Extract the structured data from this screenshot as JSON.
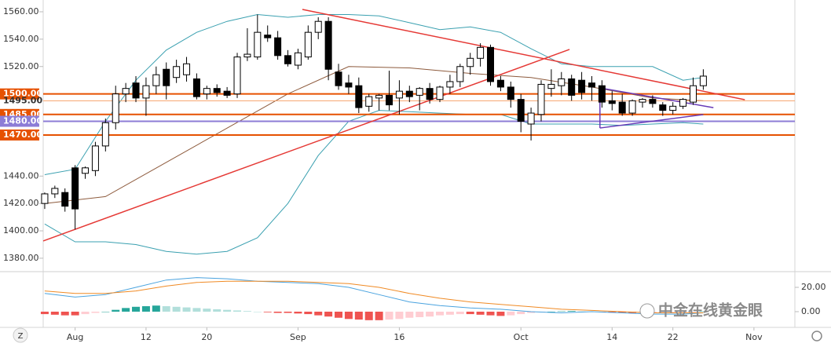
{
  "chart_data": {
    "type": "candlestick",
    "open": [
      1420,
      1427,
      1428,
      1446,
      1442,
      1444,
      1462,
      1479,
      1500,
      1508,
      1497,
      1506,
      1518,
      1512,
      1514,
      1511,
      1500,
      1504,
      1502,
      1500,
      1527,
      1527,
      1543,
      1541,
      1528,
      1521,
      1527,
      1545,
      1553,
      1516,
      1508,
      1506,
      1491,
      1497,
      1499,
      1497,
      1502,
      1499,
      1504,
      1496,
      1505,
      1509,
      1520,
      1526,
      1534,
      1510,
      1505,
      1496,
      1478,
      1485,
      1504,
      1506,
      1511,
      1510,
      1508,
      1506,
      1495,
      1494,
      1486,
      1494,
      1496,
      1492,
      1488,
      1491,
      1494,
      1506
    ],
    "high": [
      1428,
      1433,
      1431,
      1448,
      1447,
      1465,
      1482,
      1506,
      1508,
      1513,
      1512,
      1520,
      1523,
      1525,
      1527,
      1515,
      1506,
      1507,
      1505,
      1530,
      1548,
      1558,
      1550,
      1546,
      1532,
      1533,
      1550,
      1556,
      1556,
      1522,
      1514,
      1512,
      1500,
      1500,
      1517,
      1510,
      1506,
      1505,
      1508,
      1506,
      1514,
      1522,
      1530,
      1537,
      1536,
      1513,
      1509,
      1500,
      1490,
      1510,
      1518,
      1516,
      1514,
      1516,
      1513,
      1510,
      1502,
      1500,
      1496,
      1497,
      1499,
      1494,
      1494,
      1497,
      1512,
      1518
    ],
    "low": [
      1416,
      1424,
      1414,
      1401,
      1438,
      1440,
      1458,
      1474,
      1494,
      1494,
      1484,
      1500,
      1496,
      1508,
      1509,
      1496,
      1496,
      1498,
      1497,
      1497,
      1524,
      1525,
      1538,
      1525,
      1520,
      1518,
      1525,
      1540,
      1510,
      1503,
      1500,
      1486,
      1487,
      1488,
      1488,
      1485,
      1494,
      1488,
      1493,
      1494,
      1500,
      1505,
      1514,
      1520,
      1506,
      1502,
      1490,
      1472,
      1466,
      1480,
      1498,
      1499,
      1495,
      1496,
      1495,
      1490,
      1488,
      1484,
      1484,
      1490,
      1490,
      1484,
      1485,
      1489,
      1492,
      1503
    ],
    "close": [
      1427,
      1431,
      1418,
      1416,
      1446,
      1462,
      1479,
      1500,
      1504,
      1497,
      1506,
      1514,
      1506,
      1520,
      1522,
      1498,
      1504,
      1501,
      1499,
      1527,
      1529,
      1545,
      1541,
      1528,
      1522,
      1530,
      1545,
      1553,
      1518,
      1506,
      1505,
      1490,
      1498,
      1499,
      1492,
      1502,
      1498,
      1504,
      1496,
      1505,
      1509,
      1520,
      1526,
      1534,
      1509,
      1505,
      1496,
      1480,
      1486,
      1507,
      1507,
      1511,
      1499,
      1501,
      1505,
      1494,
      1493,
      1486,
      1495,
      1496,
      1493,
      1488,
      1491,
      1496,
      1506,
      1513
    ],
    "xlim": [
      -0.15,
      74.04
    ],
    "xticks": [
      {
        "value": 3,
        "label": "Aug"
      },
      {
        "value": 10,
        "label": "12"
      },
      {
        "value": 16,
        "label": "20"
      },
      {
        "value": 25,
        "label": "Sep"
      },
      {
        "value": 35,
        "label": "16"
      },
      {
        "value": 47,
        "label": "Oct"
      },
      {
        "value": 56,
        "label": "14"
      },
      {
        "value": 62,
        "label": "22"
      },
      {
        "value": 70,
        "label": "Nov"
      }
    ],
    "ylim": [
      1370.2,
      1568.6
    ],
    "yticks": [
      {
        "value": 1560,
        "label": "1560.00"
      },
      {
        "value": 1540,
        "label": "1540.00"
      },
      {
        "value": 1520,
        "label": "1520.00"
      },
      {
        "value": 1440,
        "label": "1440.00"
      },
      {
        "value": 1420,
        "label": "1420.00"
      },
      {
        "value": 1400,
        "label": "1400.00"
      },
      {
        "value": 1380,
        "label": "1380.00"
      }
    ],
    "levels": [
      {
        "value": 1500,
        "label": "1500.00",
        "color": "#e65100",
        "badge": true
      },
      {
        "value": 1495,
        "label": "1495.00",
        "color": "#f6a26b",
        "badge": false
      },
      {
        "value": 1485,
        "label": "1485.00",
        "color": "#e65100",
        "badge": true
      },
      {
        "value": 1480,
        "label": "1480.00",
        "color": "#8c7cd6",
        "badge": true
      },
      {
        "value": 1470,
        "label": "1470.00",
        "color": "#e65100",
        "badge": true
      }
    ],
    "bands": {
      "x": [
        0,
        3,
        6,
        9,
        12,
        15,
        18,
        21,
        24,
        27,
        30,
        33,
        36,
        39,
        42,
        45,
        48,
        51,
        54,
        57,
        60,
        63,
        65
      ],
      "upper": [
        1441,
        1445,
        1480,
        1510,
        1532,
        1545,
        1553,
        1558,
        1556,
        1558,
        1558,
        1557,
        1552,
        1547,
        1549,
        1545,
        1533,
        1522,
        1520,
        1520,
        1520,
        1510,
        1512
      ],
      "lower": [
        1405,
        1392,
        1392,
        1390,
        1385,
        1383,
        1385,
        1395,
        1420,
        1455,
        1480,
        1488,
        1487,
        1486,
        1485,
        1485,
        1478,
        1478,
        1478,
        1477,
        1478,
        1479,
        1478
      ],
      "basis_x": [
        0,
        6,
        12,
        18,
        24,
        30,
        36,
        42,
        48,
        54,
        60,
        65
      ],
      "basis": [
        1420,
        1425,
        1450,
        1475,
        1500,
        1520,
        1519,
        1515,
        1512,
        1505,
        1497,
        1495
      ],
      "band_color": "#3aa0b0",
      "basis_color": "#8d5a3c"
    },
    "trendlines": [
      {
        "x": [
          25.43,
          69.1
        ],
        "y": [
          1561.7,
          1495.8
        ],
        "color": "#e53935"
      },
      {
        "x": [
          -0.15,
          51.8
        ],
        "y": [
          1392.6,
          1532.5
        ],
        "color": "#e53935"
      },
      {
        "x": [
          54.8,
          66
        ],
        "y": [
          1504.4,
          1490
        ],
        "color": "#673ab7"
      },
      {
        "x": [
          54.8,
          65
        ],
        "y": [
          1475.1,
          1484.9
        ],
        "color": "#673ab7"
      },
      {
        "x": [
          54.8,
          54.8
        ],
        "y": [
          1504.4,
          1475.1
        ],
        "color": "#673ab7"
      }
    ],
    "macd": {
      "ylim": [
        -12.9,
        31.6
      ],
      "yticks": [
        {
          "value": 20,
          "label": "20.00"
        },
        {
          "value": 0,
          "label": "0.00"
        }
      ],
      "histogram": [
        -2,
        -2.5,
        -3,
        -3,
        -2,
        -1,
        0,
        1.5,
        3,
        4,
        4.5,
        5,
        4.5,
        4,
        3.5,
        3,
        2.5,
        2,
        1.5,
        1,
        0.5,
        0,
        -0.5,
        -1,
        -1,
        -1.5,
        -2,
        -3,
        -4,
        -5,
        -6,
        -6.5,
        -7,
        -7,
        -6.5,
        -6,
        -5,
        -4.5,
        -4,
        -3,
        -2.5,
        -2,
        -2,
        -2.5,
        -3,
        -3.5,
        -3,
        -2,
        -1,
        -0.5,
        0,
        0.3,
        0.5,
        0.2,
        0,
        -0.3,
        -0.5,
        -0.8,
        -1,
        -0.8,
        -0.6,
        -0.5,
        -0.4,
        -0.3,
        -0.1,
        0.2
      ],
      "x": [
        0,
        3,
        6,
        9,
        12,
        15,
        18,
        21,
        24,
        27,
        30,
        33,
        36,
        39,
        42,
        45,
        48,
        51,
        54,
        57,
        60,
        63,
        65
      ],
      "macd_line": [
        15,
        12,
        14,
        20,
        26,
        28,
        27,
        25,
        24,
        23,
        20,
        14,
        8,
        5,
        3,
        2,
        0,
        -1,
        0,
        -1,
        -2,
        -2,
        -1
      ],
      "signal_line": [
        17,
        15,
        15,
        17,
        21,
        24,
        25,
        25,
        25,
        24,
        23,
        20,
        15,
        11,
        8,
        6,
        4,
        2,
        1,
        0,
        -1,
        -1,
        -1
      ],
      "macd_color": "#4aa3df",
      "signal_color": "#f08a24"
    },
    "watermark": "中金在线黄金眼"
  }
}
